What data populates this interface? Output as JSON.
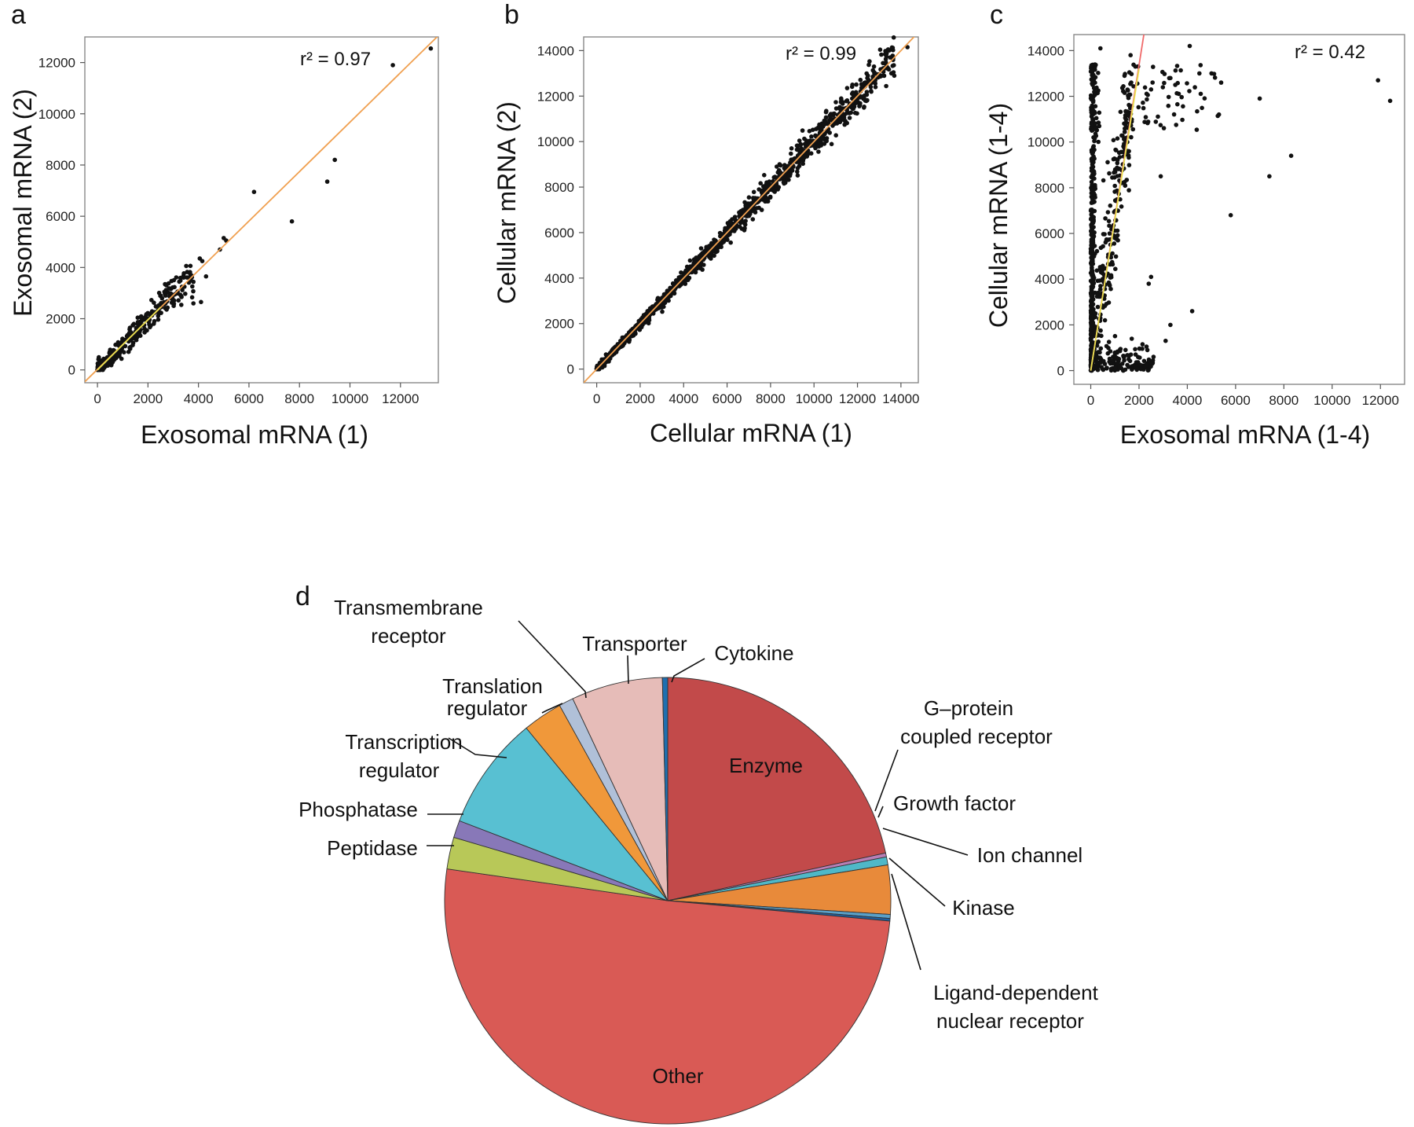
{
  "chart_data": [
    {
      "panel": "a",
      "type": "scatter",
      "xlabel": "Exosomal mRNA (1)",
      "ylabel": "Exosomal mRNA (2)",
      "xticks": [
        "0",
        "2000",
        "4000",
        "6000",
        "8000",
        "10000",
        "12000"
      ],
      "yticks": [
        "0",
        "2000",
        "4000",
        "6000",
        "8000",
        "10000",
        "12000"
      ],
      "xlim": [
        -500,
        13500
      ],
      "ylim": [
        -500,
        13000
      ],
      "annotation": "r² = 0.97",
      "fit_lines": [
        {
          "color": "#f0a050",
          "x": [
            -500,
            13500
          ],
          "y": [
            -460,
            13050
          ]
        },
        {
          "color": "#e8e050",
          "x": [
            0,
            2500
          ],
          "y": [
            0,
            2450
          ]
        }
      ],
      "cluster": {
        "n": 340,
        "seed": 11,
        "xmax": 3800,
        "slope": 0.98,
        "noise": 120,
        "noise_scale": 0.08
      },
      "points": [
        [
          13200,
          12550
        ],
        [
          11700,
          11900
        ],
        [
          9400,
          8200
        ],
        [
          9100,
          7350
        ],
        [
          7700,
          5800
        ],
        [
          6200,
          6950
        ],
        [
          5000,
          5150
        ],
        [
          5100,
          5050
        ],
        [
          4850,
          4700
        ],
        [
          4300,
          3650
        ],
        [
          4100,
          2650
        ],
        [
          3800,
          2600
        ],
        [
          4150,
          4250
        ],
        [
          4050,
          4350
        ],
        [
          3700,
          3500
        ],
        [
          2650,
          3050
        ]
      ]
    },
    {
      "panel": "b",
      "type": "scatter",
      "xlabel": "Cellular mRNA (1)",
      "ylabel": "Cellular mRNA (2)",
      "xticks": [
        "0",
        "2000",
        "4000",
        "6000",
        "8000",
        "10000",
        "12000",
        "14000"
      ],
      "yticks": [
        "0",
        "2000",
        "4000",
        "6000",
        "8000",
        "10000",
        "12000",
        "14000"
      ],
      "xlim": [
        -600,
        14800
      ],
      "ylim": [
        -600,
        14600
      ],
      "annotation": "r² = 0.99",
      "fit_lines": [
        {
          "color": "#f0a050",
          "x": [
            -600,
            14800
          ],
          "y": [
            -600,
            14800
          ]
        }
      ],
      "cluster": {
        "n": 1400,
        "seed": 23,
        "xmax": 13700,
        "slope": 1.0,
        "noise": 60,
        "noise_scale": 0.025
      },
      "points": [
        [
          14300,
          14150
        ]
      ]
    },
    {
      "panel": "c",
      "type": "scatter",
      "xlabel": "Exosomal mRNA (1-4)",
      "ylabel": "Cellular mRNA (1-4)",
      "xticks": [
        "0",
        "2000",
        "4000",
        "6000",
        "8000",
        "10000",
        "12000"
      ],
      "yticks": [
        "0",
        "2000",
        "4000",
        "6000",
        "8000",
        "10000",
        "12000",
        "14000"
      ],
      "xlim": [
        -700,
        13000
      ],
      "ylim": [
        -600,
        14700
      ],
      "annotation": "r² = 0.42",
      "fit_lines": [
        {
          "color": "#f06a6a",
          "x": [
            0,
            2200
          ],
          "y": [
            0,
            14700
          ]
        },
        {
          "color": "#e8e050",
          "x": [
            0,
            2000
          ],
          "y": [
            0,
            13200
          ]
        }
      ],
      "points": [
        [
          12400,
          11800
        ],
        [
          11900,
          12700
        ],
        [
          8300,
          9400
        ],
        [
          7400,
          8500
        ],
        [
          7000,
          11900
        ],
        [
          5800,
          6800
        ],
        [
          4200,
          2600
        ],
        [
          2600,
          600
        ],
        [
          2500,
          4100
        ],
        [
          2400,
          3800
        ],
        [
          3300,
          2000
        ],
        [
          3100,
          1300
        ],
        [
          2900,
          8500
        ],
        [
          3300,
          12800
        ],
        [
          4100,
          14200
        ],
        [
          400,
          14100
        ],
        [
          1400,
          12900
        ],
        [
          2500,
          12300
        ],
        [
          3500,
          12500
        ],
        [
          4500,
          13000
        ],
        [
          5000,
          13000
        ],
        [
          5400,
          12600
        ]
      ]
    },
    {
      "panel": "d",
      "type": "pie",
      "slices": [
        {
          "label": "Enzyme",
          "value": 22.5,
          "color": "#c24a4a"
        },
        {
          "label": "G-protein coupled receptor",
          "value": 0.3,
          "color": "#b87fb5"
        },
        {
          "label": "Growth factor",
          "value": 0.6,
          "color": "#4fb8c8"
        },
        {
          "label": "Ion channel",
          "value": 3.7,
          "color": "#e88a3a"
        },
        {
          "label": "Kinase",
          "value": 0.3,
          "color": "#5aa0c8"
        },
        {
          "label": "Ligand-dependent nuclear receptor",
          "value": 0.2,
          "color": "#1f5fa0"
        },
        {
          "label": "Other",
          "value": 53.0,
          "color": "#d95a55"
        },
        {
          "label": "Peptidase",
          "value": 2.4,
          "color": "#b8c858"
        },
        {
          "label": "Phosphatase",
          "value": 1.3,
          "color": "#8878b8"
        },
        {
          "label": "Transcription regulator",
          "value": 8.6,
          "color": "#58c0d2"
        },
        {
          "label": "Translation regulator",
          "value": 3.0,
          "color": "#f0983a"
        },
        {
          "label": "Transmembrane receptor",
          "value": 1.1,
          "color": "#b0c0d8"
        },
        {
          "label": "Transporter",
          "value": 6.9,
          "color": "#e6bcb8"
        },
        {
          "label": "Cytokine",
          "value": 0.4,
          "color": "#1f6fb0"
        }
      ]
    }
  ],
  "labels": {
    "a": "a",
    "b": "b",
    "c": "c",
    "d": "d",
    "enzyme": "Enzyme",
    "gprotein_1": "G–protein",
    "gprotein_2": "coupled receptor",
    "growth": "Growth factor",
    "ion": "Ion channel",
    "kinase": "Kinase",
    "ligand_1": "Ligand-dependent",
    "ligand_2": "nuclear receptor",
    "other": "Other",
    "peptidase": "Peptidase",
    "phosphatase": "Phosphatase",
    "transcription_1": "Transcription",
    "transcription_2": "regulator",
    "translation_1": "Translation",
    "translation_2": "regulator",
    "transmembrane_1": "Transmembrane",
    "transmembrane_2": "receptor",
    "transporter": "Transporter",
    "cytokine": "Cytokine"
  }
}
